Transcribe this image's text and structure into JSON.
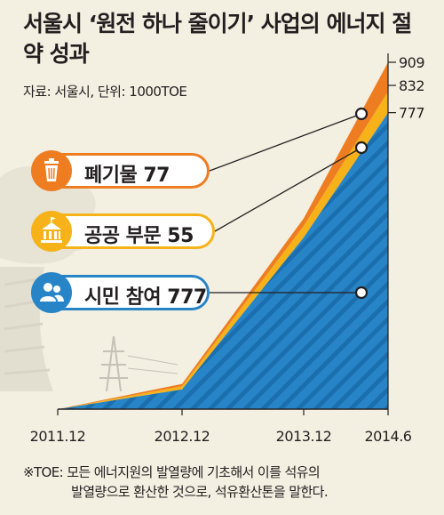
{
  "title": "서울시 ‘원전 하나 줄이기’ 사업의 에너지 절약 성과",
  "source": "자료: 서울시, 단위: 1000TOE",
  "footnote": {
    "line1": "※TOE: 모든 에너지원의 발열량에 기초해서 이를 석유의",
    "line2": "발열량으로 환산한 것으로, 석유환산톤을 말한다."
  },
  "badges": {
    "waste": "폐기물 77",
    "public": "공공 부문 55",
    "citizen": "시민 참여 777"
  },
  "chart_data": {
    "type": "area",
    "stacked": true,
    "categories": [
      "2011.12",
      "2012.12",
      "2013.12",
      "2014.6"
    ],
    "series": [
      {
        "name": "시민 참여",
        "values": [
          0,
          52,
          450,
          777
        ],
        "color": "#2785c7"
      },
      {
        "name": "공공 부문",
        "values": [
          0,
          8,
          30,
          55
        ],
        "color": "#f6b218"
      },
      {
        "name": "폐기물",
        "values": [
          0,
          6,
          20,
          77
        ],
        "color": "#ee7d22"
      }
    ],
    "end_labels": [
      "909",
      "832",
      "777"
    ],
    "ylim": [
      0,
      909
    ],
    "grid": false,
    "colors": {
      "background": "#f3efe1",
      "axis": "#231f20"
    }
  }
}
